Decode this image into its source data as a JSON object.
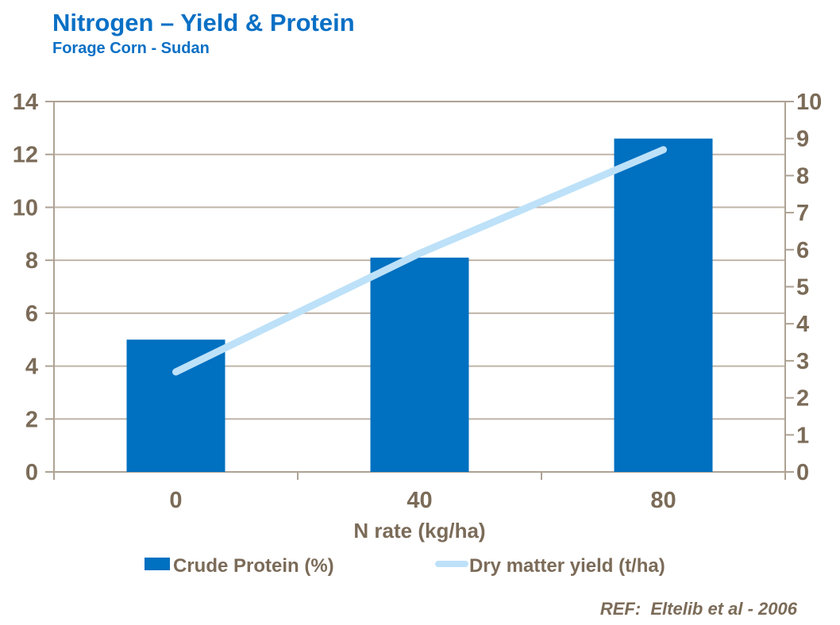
{
  "header": {
    "title": "Nitrogen – Yield & Protein",
    "subtitle": "Forage Corn - Sudan"
  },
  "footer": {
    "ref": "REF:  Eltelib et al - 2006"
  },
  "colors": {
    "title": "#0A70C5",
    "axis_text": "#7B6B58",
    "bar": "#0070C0",
    "line": "#BDE1F8",
    "grid": "#C0B5A9",
    "frame": "#AEA294"
  },
  "chart_data": {
    "type": "bar",
    "subtype": "bar-and-line-combo",
    "categories": [
      "0",
      "40",
      "80"
    ],
    "series": [
      {
        "name": "Crude Protein (%)",
        "type": "bar",
        "axis": "left",
        "values": [
          5.0,
          8.1,
          12.6
        ],
        "color": "#0070C0"
      },
      {
        "name": "Dry matter yield (t/ha)",
        "type": "line",
        "axis": "right",
        "values": [
          2.7,
          5.9,
          8.7
        ],
        "color": "#BDE1F8"
      }
    ],
    "xlabel": "N rate (kg/ha)",
    "left_axis": {
      "min": 0,
      "max": 14,
      "step": 2,
      "tick_labels": [
        "0",
        "2",
        "4",
        "6",
        "8",
        "10",
        "12",
        "14"
      ]
    },
    "right_axis": {
      "min": 0,
      "max": 10,
      "step": 1,
      "tick_labels": [
        "0",
        "1",
        "2",
        "3",
        "4",
        "5",
        "6",
        "7",
        "8",
        "9",
        "10"
      ]
    },
    "grid": true,
    "legend_position": "bottom"
  }
}
